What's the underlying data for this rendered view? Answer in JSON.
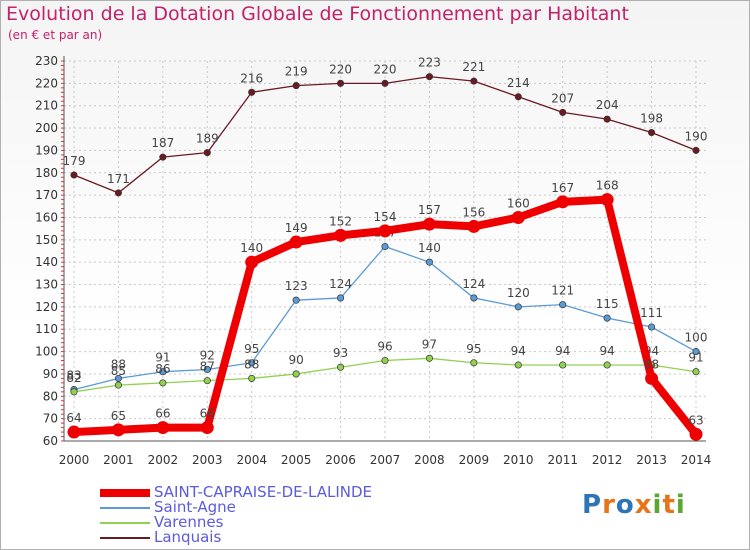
{
  "header": {
    "title": "Evolution de la Dotation Globale de Fonctionnement par Habitant",
    "subtitle": "(en € et par an)"
  },
  "logo": {
    "p": "P",
    "r": "r",
    "o": "o",
    "x": "x",
    "i1": "i",
    "t": "t",
    "i2": "i"
  },
  "chart_data": {
    "type": "line",
    "title": "Evolution de la Dotation Globale de Fonctionnement par Habitant",
    "subtitle": "(en € et par an)",
    "xlabel": "",
    "ylabel": "",
    "ylim": [
      60,
      230
    ],
    "yticks": [
      60,
      70,
      80,
      90,
      100,
      110,
      120,
      130,
      140,
      150,
      160,
      170,
      180,
      190,
      200,
      210,
      220,
      230
    ],
    "categories": [
      "2000",
      "2001",
      "2002",
      "2003",
      "2004",
      "2005",
      "2006",
      "2007",
      "2008",
      "2009",
      "2010",
      "2011",
      "2012",
      "2013",
      "2014"
    ],
    "grid": true,
    "legend_position": "bottom-left",
    "series": [
      {
        "name": "Lanquais",
        "color": "#6b1a24",
        "values": [
          179,
          171,
          187,
          189,
          216,
          219,
          220,
          220,
          223,
          221,
          214,
          207,
          204,
          198,
          190
        ]
      },
      {
        "name": "Saint-Agne",
        "color": "#5b9bd5",
        "values": [
          83,
          88,
          91,
          92,
          95,
          123,
          124,
          147,
          140,
          124,
          120,
          121,
          115,
          111,
          100
        ]
      },
      {
        "name": "Varennes",
        "color": "#92d050",
        "values": [
          82,
          85,
          86,
          87,
          88,
          90,
          93,
          96,
          97,
          95,
          94,
          94,
          94,
          94,
          91
        ]
      },
      {
        "name": "SAINT-CAPRAISE-DE-LALINDE",
        "color": "#ee0000",
        "values": [
          64,
          65,
          66,
          66,
          140,
          149,
          152,
          154,
          157,
          156,
          160,
          167,
          168,
          88,
          63
        ]
      }
    ],
    "legend": [
      "SAINT-CAPRAISE-DE-LALINDE",
      "Saint-Agne",
      "Varennes",
      "Lanquais"
    ]
  }
}
